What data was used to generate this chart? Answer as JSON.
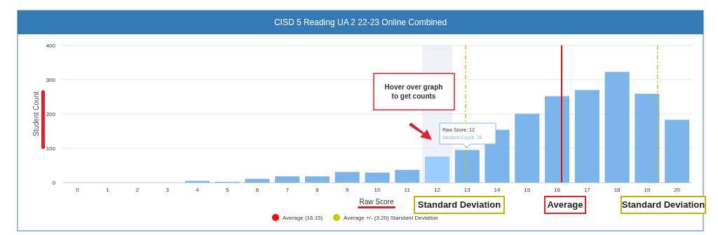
{
  "chart_data": {
    "type": "bar",
    "title": "CISD 5 Reading UA 2 22-23 Online Combined",
    "xlabel": "Raw Score",
    "ylabel": "Student Count",
    "x": [
      0,
      1,
      2,
      3,
      4,
      5,
      6,
      7,
      8,
      9,
      10,
      11,
      12,
      13,
      14,
      15,
      16,
      17,
      18,
      19,
      20
    ],
    "values": [
      0,
      0,
      0,
      0,
      5,
      2,
      11,
      18,
      18,
      31,
      29,
      37,
      76,
      95,
      154,
      201,
      252,
      270,
      323,
      259,
      183
    ],
    "colors": [
      "#7cb5ec",
      "#7cb5ec",
      "#7cb5ec",
      "#7cb5ec",
      "#7cb5ec",
      "#7cb5ec",
      "#7cb5ec",
      "#7cb5ec",
      "#7cb5ec",
      "#7cb5ec",
      "#7cb5ec",
      "#7cb5ec",
      "#9ccfff",
      "#7cb5ec",
      "#7cb5ec",
      "#7cb5ec",
      "#7cb5ec",
      "#7cb5ec",
      "#7cb5ec",
      "#7cb5ec",
      "#7cb5ec"
    ],
    "xlim": [
      -0.5,
      20.5
    ],
    "xticks": [
      0,
      1,
      2,
      3,
      4,
      5,
      6,
      7,
      8,
      9,
      10,
      11,
      12,
      13,
      14,
      15,
      16,
      17,
      18,
      19,
      20
    ],
    "ylim": [
      0,
      400
    ],
    "yticks": [
      0,
      100,
      200,
      300,
      400
    ],
    "grid": "y",
    "legend": "bottom",
    "ref_lines": [
      {
        "axis": "x",
        "value": 16.15,
        "label": "Average (16.15)",
        "color": "#ff0000",
        "line_style": "solid"
      },
      {
        "axis": "x",
        "value": 12.95,
        "label": "Average +/- (3.20) Standard Deviation",
        "color": "#c8c800",
        "line_style": "dashed"
      },
      {
        "axis": "x",
        "value": 19.35,
        "label": null,
        "color": "#c8c800",
        "line_style": "dashed"
      }
    ],
    "bands": [
      {
        "axis": "x",
        "from": 11.5,
        "to": 12.5,
        "label": null,
        "color": "#eef2f7"
      }
    ],
    "annotations": [
      "Hover over graph\nto get counts",
      "Raw Score: 12\nStudent Count: 76",
      "Standard Deviation",
      "Average",
      "Standard Deviation"
    ]
  }
}
